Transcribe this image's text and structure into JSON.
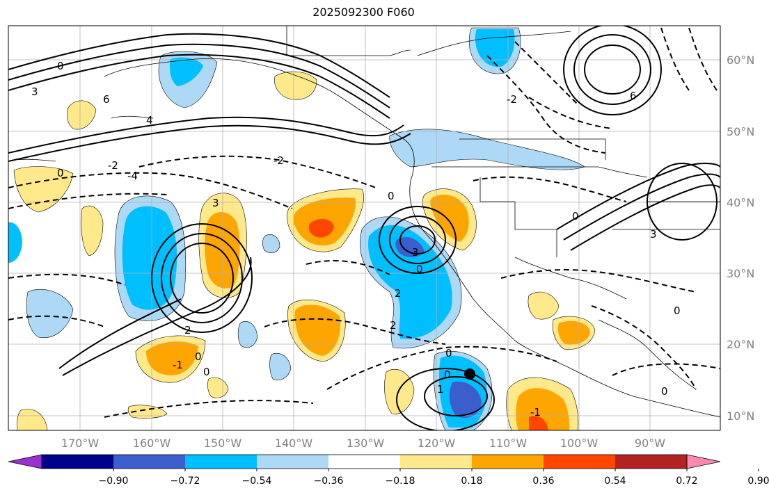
{
  "title": "2025092300 F060",
  "lat_labels": [
    "60°N",
    "50°N",
    "40°N",
    "30°N",
    "20°N",
    "10°N"
  ],
  "lon_labels": [
    "170°W",
    "160°W",
    "150°W",
    "140°W",
    "130°W",
    "120°W",
    "110°W",
    "100°W",
    "90°W"
  ],
  "colorbar": {
    "ticks": [
      "−0.90",
      "−0.72",
      "−0.54",
      "−0.36",
      "−0.18",
      "0.18",
      "0.36",
      "0.54",
      "0.72",
      "0.90"
    ],
    "colors": [
      "#9932cc",
      "#00008b",
      "#3a5fcd",
      "#00bfff",
      "#add8f6",
      "#ffffff",
      "#ffe98a",
      "#ffa500",
      "#ff4500",
      "#b22222",
      "#ff88b0"
    ]
  },
  "contour_labels": [
    "0",
    "2",
    "3",
    "4",
    "6",
    "-2",
    "-4",
    "1",
    "-1"
  ]
}
